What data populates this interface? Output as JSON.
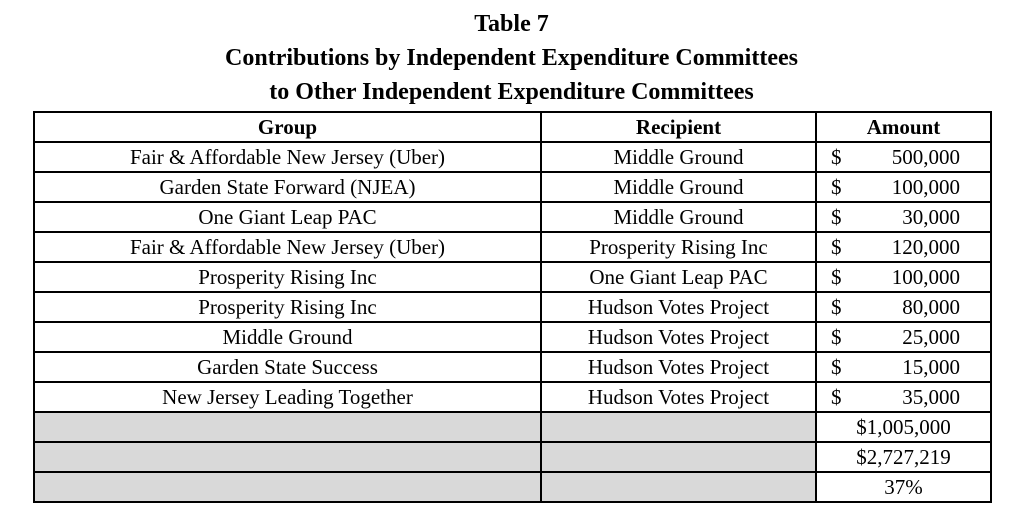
{
  "title": {
    "line1": "Table 7",
    "line2": "Contributions by Independent Expenditure Committees",
    "line3": "to Other Independent Expenditure Committees"
  },
  "table": {
    "columns": [
      "Group",
      "Recipient",
      "Amount"
    ],
    "rows": [
      {
        "group": "Fair & Affordable New Jersey (Uber)",
        "recipient": "Middle Ground",
        "currency": "$",
        "amount": "500,000"
      },
      {
        "group": "Garden State Forward (NJEA)",
        "recipient": "Middle Ground",
        "currency": "$",
        "amount": "100,000"
      },
      {
        "group": "One Giant Leap PAC",
        "recipient": "Middle Ground",
        "currency": "$",
        "amount": "30,000"
      },
      {
        "group": "Fair & Affordable New Jersey (Uber)",
        "recipient": "Prosperity Rising Inc",
        "currency": "$",
        "amount": "120,000"
      },
      {
        "group": "Prosperity Rising Inc",
        "recipient": "One Giant Leap PAC",
        "currency": "$",
        "amount": "100,000"
      },
      {
        "group": "Prosperity Rising Inc",
        "recipient": "Hudson Votes Project",
        "currency": "$",
        "amount": "80,000"
      },
      {
        "group": "Middle Ground",
        "recipient": "Hudson Votes Project",
        "currency": "$",
        "amount": "25,000"
      },
      {
        "group": "Garden State Success",
        "recipient": "Hudson Votes Project",
        "currency": "$",
        "amount": "15,000"
      },
      {
        "group": "New Jersey Leading Together",
        "recipient": "Hudson Votes Project",
        "currency": "$",
        "amount": "35,000"
      }
    ],
    "summary_rows": [
      {
        "amount": "$1,005,000",
        "align": "left"
      },
      {
        "amount": "$2,727,219",
        "align": "left"
      },
      {
        "amount": "37%",
        "align": "center"
      }
    ]
  },
  "colors": {
    "shaded_cell": "#d9d9d9",
    "border": "#000000",
    "text": "#000000"
  }
}
